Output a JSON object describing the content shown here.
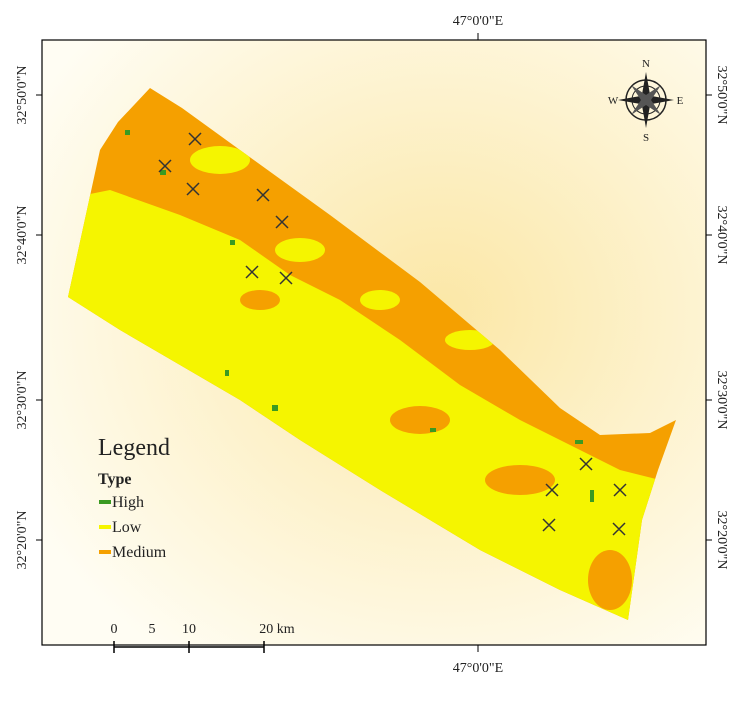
{
  "map": {
    "top_label": "47°0'0\"E",
    "bottom_label": "47°0'0\"E",
    "lat_labels": [
      "32°50'0\"N",
      "32°40'0\"N",
      "32°30'0\"N",
      "32°20'0\"N"
    ],
    "compass": {
      "n": "N",
      "w": "W",
      "e": "E",
      "s": "S"
    }
  },
  "legend": {
    "title": "Legend",
    "subtitle": "Type",
    "items": [
      {
        "label": "High",
        "color": "#3a9a22"
      },
      {
        "label": "Low",
        "color": "#f5f500"
      },
      {
        "label": "Medium",
        "color": "#f5a000"
      }
    ]
  },
  "scale": {
    "labels": [
      "0",
      "5",
      "10",
      "20 km"
    ]
  }
}
